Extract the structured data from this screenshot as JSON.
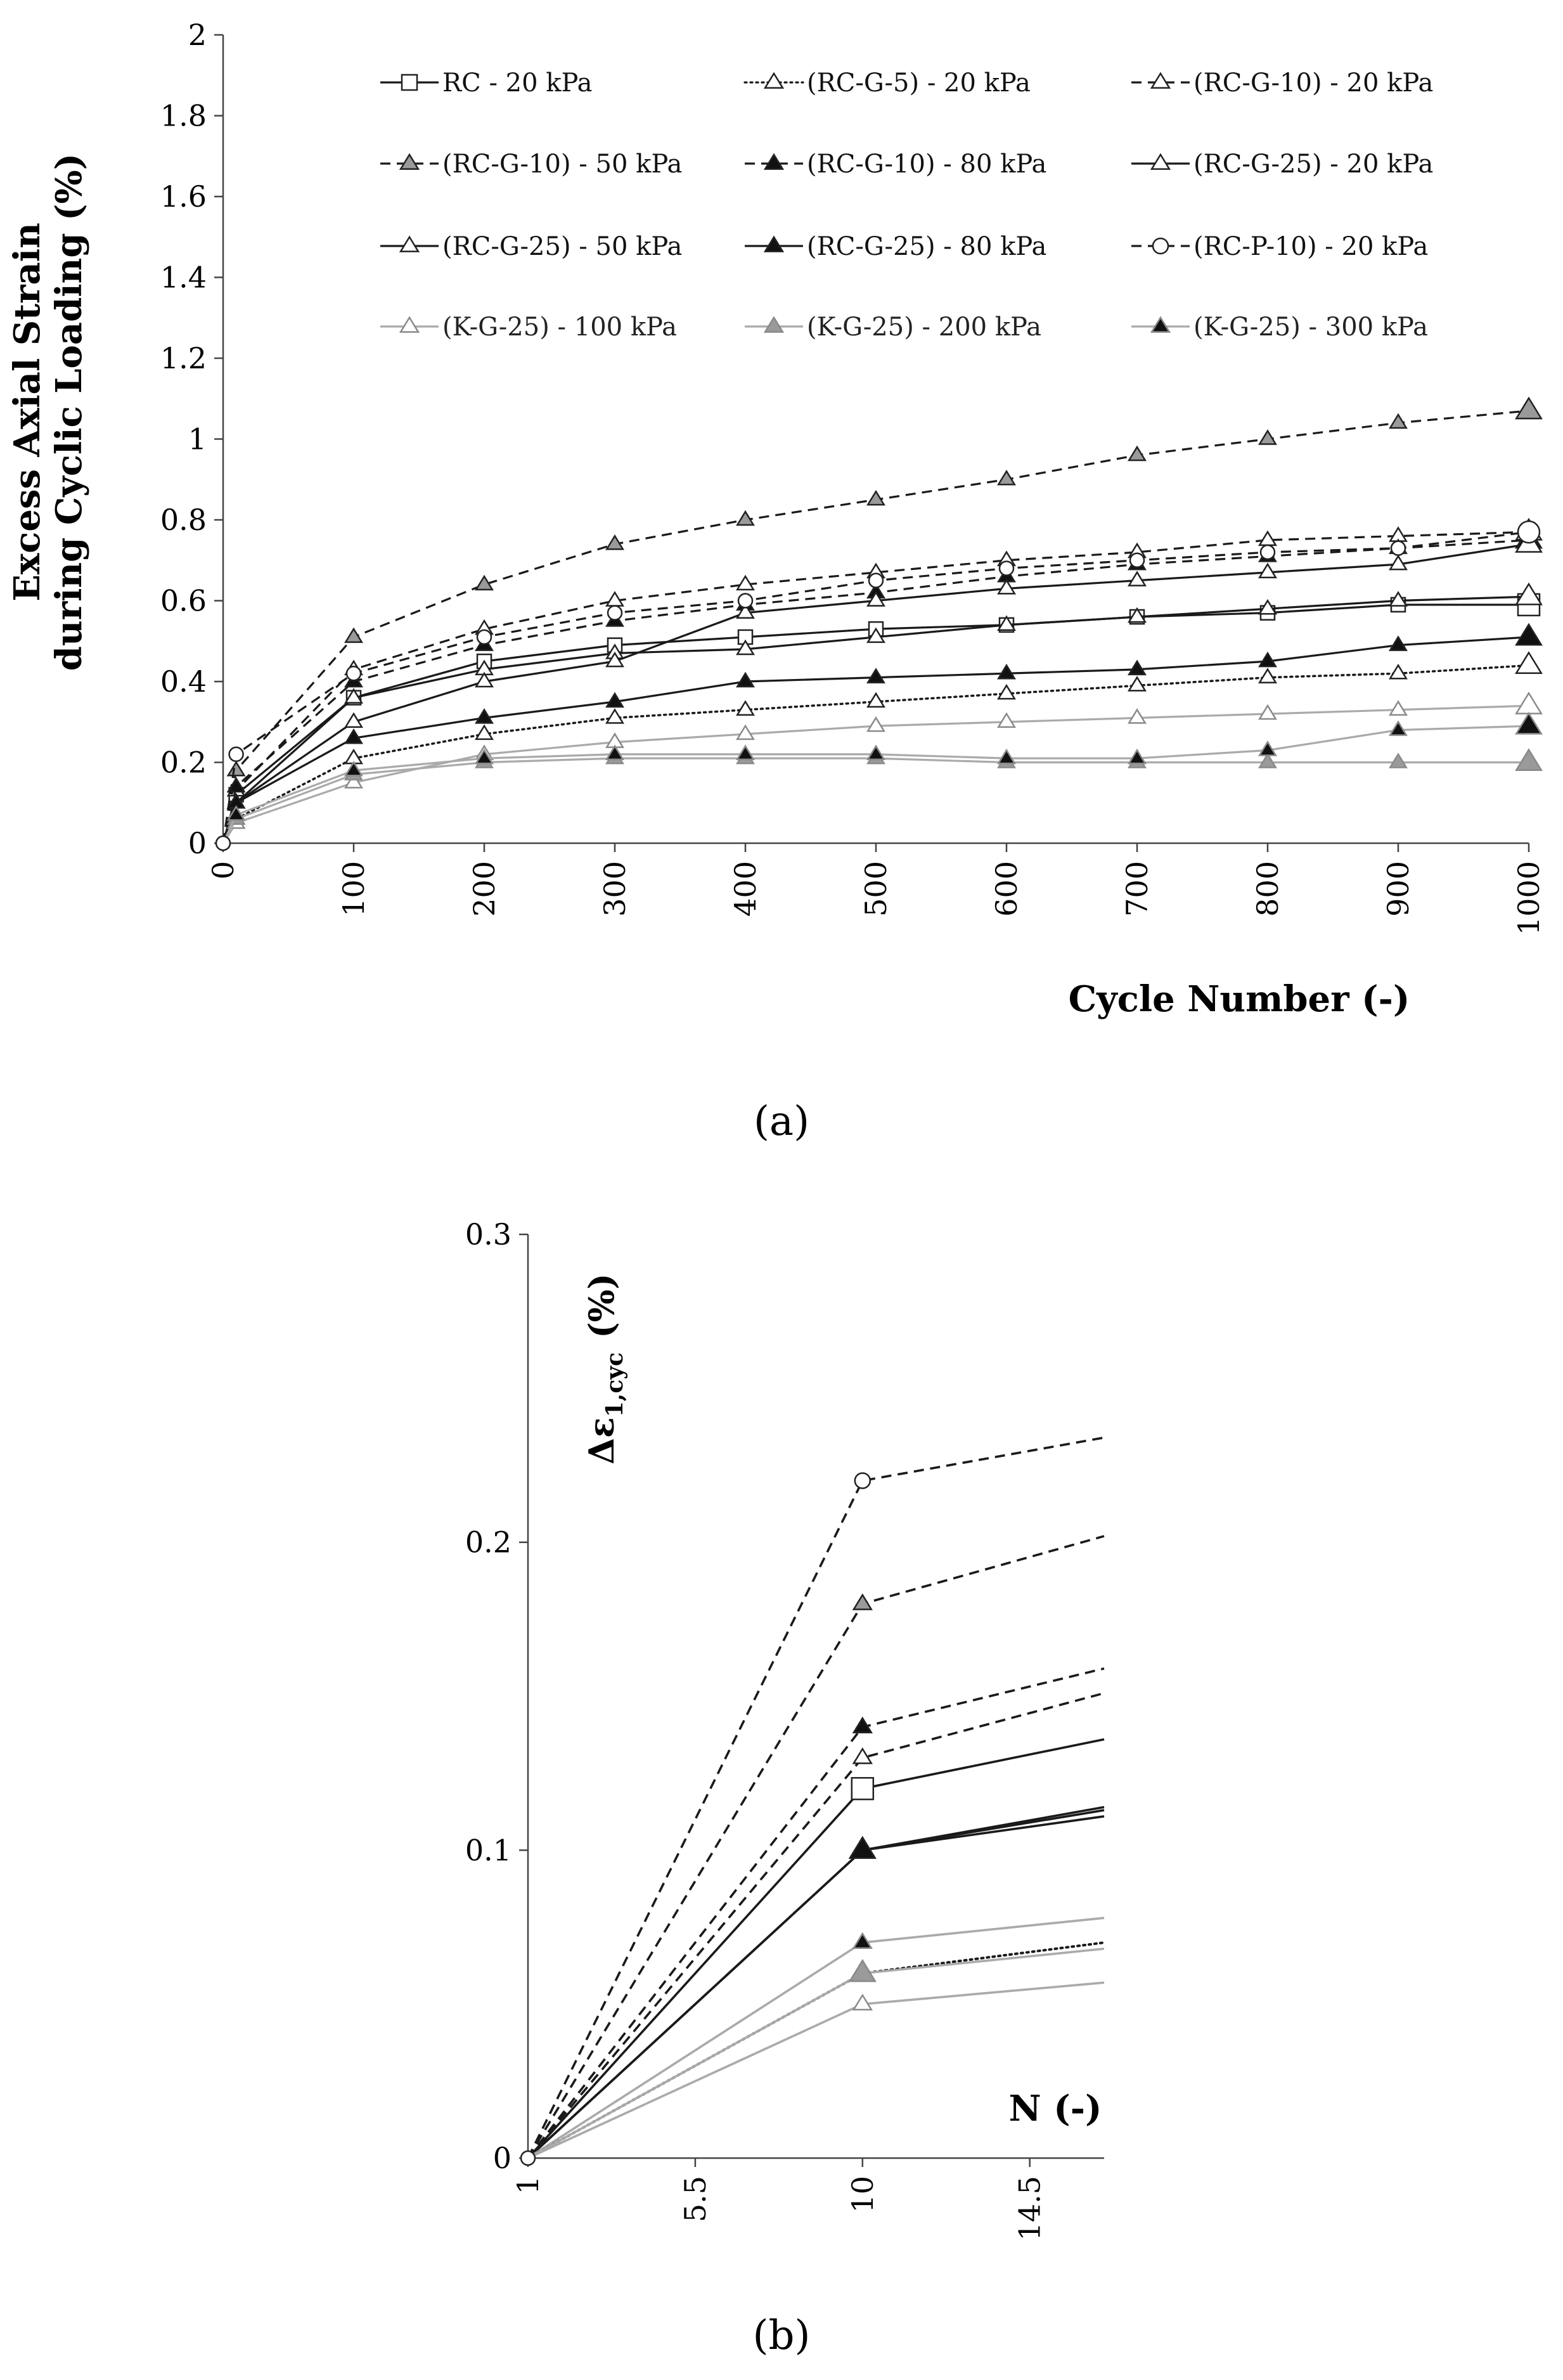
{
  "chart_data": [
    {
      "panel": "(a)",
      "type": "line",
      "xlabel": "Cycle Number (-)",
      "ylabel_line1": "Excess Axial Strain",
      "ylabel_line2": "during Cyclic Loading  (%)",
      "xlim": [
        0,
        1000
      ],
      "ylim": [
        0,
        2
      ],
      "xticks": [
        "0",
        "100",
        "200",
        "300",
        "400",
        "500",
        "600",
        "700",
        "800",
        "900",
        "1000"
      ],
      "yticks": [
        "0",
        "0.2",
        "0.4",
        "0.6",
        "0.8",
        "1",
        "1.2",
        "1.4",
        "1.6",
        "1.8",
        "2"
      ],
      "x": [
        0,
        10,
        100,
        200,
        300,
        400,
        500,
        600,
        700,
        800,
        900,
        1000
      ],
      "series": [
        {
          "name": "RC - 20 kPa",
          "color": "#1a1a1a",
          "dash": "solid",
          "marker": "square-open",
          "values": [
            0,
            0.12,
            0.36,
            0.45,
            0.49,
            0.51,
            0.53,
            0.54,
            0.56,
            0.57,
            0.59,
            0.59
          ]
        },
        {
          "name": "(RC-G-5) - 20 kPa",
          "color": "#1a1a1a",
          "dash": "dotted",
          "marker": "triangle-open",
          "values": [
            0,
            0.06,
            0.21,
            0.27,
            0.31,
            0.33,
            0.35,
            0.37,
            0.39,
            0.41,
            0.42,
            0.44
          ]
        },
        {
          "name": "(RC-G-10) - 20 kPa",
          "color": "#1a1a1a",
          "dash": "dashed",
          "marker": "triangle-open",
          "values": [
            0,
            0.13,
            0.43,
            0.53,
            0.6,
            0.64,
            0.67,
            0.7,
            0.72,
            0.75,
            0.76,
            0.77
          ]
        },
        {
          "name": "(RC-G-10) - 50 kPa",
          "color": "#1a1a1a",
          "dash": "dashed",
          "marker": "triangle-gray",
          "values": [
            0,
            0.18,
            0.51,
            0.64,
            0.74,
            0.8,
            0.85,
            0.9,
            0.96,
            1.0,
            1.04,
            1.07
          ]
        },
        {
          "name": "(RC-G-10) - 80 kPa",
          "color": "#1a1a1a",
          "dash": "dashed",
          "marker": "triangle-filled",
          "values": [
            0,
            0.14,
            0.4,
            0.49,
            0.55,
            0.59,
            0.62,
            0.66,
            0.69,
            0.71,
            0.73,
            0.75
          ]
        },
        {
          "name": "(RC-G-25) - 20 kPa",
          "color": "#1a1a1a",
          "dash": "solid",
          "marker": "triangle-open",
          "values": [
            0,
            0.1,
            0.36,
            0.43,
            0.47,
            0.48,
            0.51,
            0.54,
            0.56,
            0.58,
            0.6,
            0.61
          ]
        },
        {
          "name": "(RC-G-25) - 50 kPa",
          "color": "#1a1a1a",
          "dash": "solid",
          "marker": "triangle-open",
          "values": [
            0,
            0.1,
            0.3,
            0.4,
            0.45,
            0.57,
            0.6,
            0.63,
            0.65,
            0.67,
            0.69,
            0.74
          ]
        },
        {
          "name": "(RC-G-25) - 80 kPa",
          "color": "#1a1a1a",
          "dash": "solid",
          "marker": "triangle-filled",
          "values": [
            0,
            0.1,
            0.26,
            0.31,
            0.35,
            0.4,
            0.41,
            0.42,
            0.43,
            0.45,
            0.49,
            0.51
          ]
        },
        {
          "name": "(RC-P-10) - 20 kPa",
          "color": "#1a1a1a",
          "dash": "dashed",
          "marker": "circle-open",
          "values": [
            0,
            0.22,
            0.42,
            0.51,
            0.57,
            0.6,
            0.65,
            0.68,
            0.7,
            0.72,
            0.73,
            0.77
          ]
        },
        {
          "name": "(K-G-25) - 100 kPa",
          "color": "#aaaaaa",
          "dash": "solid",
          "marker": "triangle-open",
          "values": [
            0,
            0.05,
            0.15,
            0.22,
            0.25,
            0.27,
            0.29,
            0.3,
            0.31,
            0.32,
            0.33,
            0.34
          ]
        },
        {
          "name": "(K-G-25) - 200 kPa",
          "color": "#aaaaaa",
          "dash": "solid",
          "marker": "triangle-gray",
          "values": [
            0,
            0.06,
            0.17,
            0.2,
            0.21,
            0.21,
            0.21,
            0.2,
            0.2,
            0.2,
            0.2,
            0.2
          ]
        },
        {
          "name": "(K-G-25) - 300 kPa",
          "color": "#aaaaaa",
          "dash": "solid",
          "marker": "triangle-filled",
          "values": [
            0,
            0.07,
            0.18,
            0.21,
            0.22,
            0.22,
            0.22,
            0.21,
            0.21,
            0.23,
            0.28,
            0.29
          ]
        }
      ]
    },
    {
      "panel": "(b)",
      "type": "line",
      "xlabel": "N (-)",
      "ylabel_main": "Δε",
      "ylabel_sub": "1,cyc",
      "ylabel_unit": "(%)",
      "xlim": [
        1,
        16.5
      ],
      "ylim": [
        0,
        0.3
      ],
      "xticks": [
        "1",
        "5.5",
        "10",
        "14.5"
      ],
      "yticks": [
        "0",
        "0.1",
        "0.2",
        "0.3"
      ],
      "x": [
        1,
        10,
        16.5
      ],
      "series": [
        {
          "name": "(RC-P-10) - 20 kPa",
          "color": "#1a1a1a",
          "dash": "dashed",
          "marker": "circle-open",
          "values": [
            0,
            0.22,
            0.234
          ]
        },
        {
          "name": "(RC-G-10) - 50 kPa",
          "color": "#1a1a1a",
          "dash": "dashed",
          "marker": "triangle-gray",
          "values": [
            0,
            0.18,
            0.202
          ]
        },
        {
          "name": "(RC-G-10) - 80 kPa",
          "color": "#1a1a1a",
          "dash": "dashed",
          "marker": "triangle-filled",
          "values": [
            0,
            0.14,
            0.159
          ]
        },
        {
          "name": "(RC-G-10) - 20 kPa",
          "color": "#1a1a1a",
          "dash": "dashed",
          "marker": "triangle-open",
          "values": [
            0,
            0.13,
            0.151
          ]
        },
        {
          "name": "RC - 20 kPa",
          "color": "#1a1a1a",
          "dash": "solid",
          "marker": "square-open",
          "values": [
            0,
            0.12,
            0.136
          ]
        },
        {
          "name": "(RC-G-25) - 20 kPa",
          "color": "#1a1a1a",
          "dash": "solid",
          "marker": "triangle-open",
          "values": [
            0,
            0.1,
            0.111
          ]
        },
        {
          "name": "(RC-G-25) - 50 kPa",
          "color": "#1a1a1a",
          "dash": "solid",
          "marker": "triangle-open",
          "values": [
            0,
            0.1,
            0.113
          ]
        },
        {
          "name": "(RC-G-25) - 80 kPa",
          "color": "#1a1a1a",
          "dash": "solid",
          "marker": "triangle-filled",
          "values": [
            0,
            0.1,
            0.114
          ]
        },
        {
          "name": "(K-G-25) - 300 kPa",
          "color": "#aaaaaa",
          "dash": "solid",
          "marker": "triangle-filled",
          "values": [
            0,
            0.07,
            0.078
          ]
        },
        {
          "name": "(RC-G-5) - 20 kPa",
          "color": "#1a1a1a",
          "dash": "dotted",
          "marker": "triangle-open",
          "values": [
            0,
            0.06,
            0.07
          ]
        },
        {
          "name": "(K-G-25) - 200 kPa",
          "color": "#aaaaaa",
          "dash": "solid",
          "marker": "triangle-gray",
          "values": [
            0,
            0.06,
            0.068
          ]
        },
        {
          "name": "(K-G-25) - 100 kPa",
          "color": "#aaaaaa",
          "dash": "solid",
          "marker": "triangle-open",
          "values": [
            0,
            0.05,
            0.057
          ]
        }
      ]
    }
  ],
  "captions": {
    "a": "(a)",
    "b": "(b)"
  }
}
